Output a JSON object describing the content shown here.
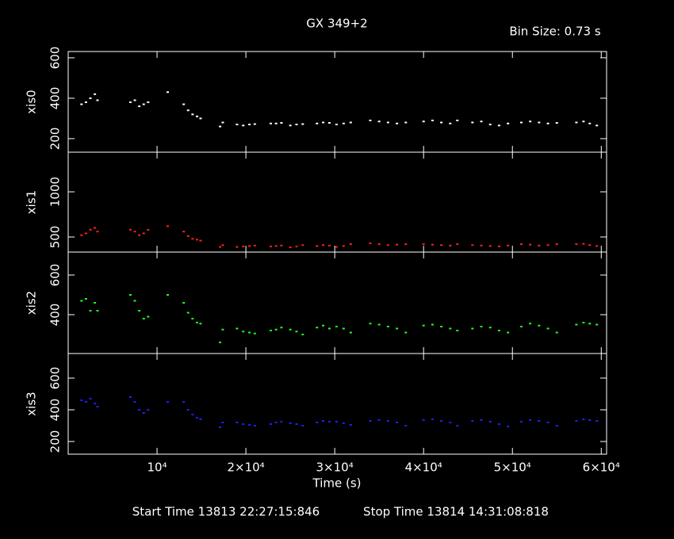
{
  "chart_data": [
    {
      "type": "scatter",
      "title": "GX 349+2",
      "subtitle": "Bin Size: 0.73 s",
      "ylabel": "xis0",
      "color": "#ffffff",
      "x": [
        1500,
        2000,
        2500,
        3000,
        3300,
        7000,
        7500,
        8000,
        8500,
        9000,
        11200,
        13000,
        13500,
        14000,
        14500,
        14900,
        17100,
        17400,
        19000,
        19700,
        20400,
        21000,
        22800,
        23400,
        24000,
        25000,
        25700,
        26400,
        28000,
        28700,
        29400,
        30200,
        31000,
        31800,
        34000,
        35000,
        36000,
        37000,
        38000,
        40000,
        41000,
        42000,
        43000,
        43800,
        45500,
        46500,
        47500,
        48500,
        49500,
        51000,
        52000,
        53000,
        54000,
        55000,
        57200,
        58000,
        58700,
        59500
      ],
      "values": [
        370,
        380,
        400,
        420,
        390,
        380,
        390,
        360,
        370,
        380,
        430,
        370,
        340,
        320,
        310,
        300,
        260,
        280,
        270,
        265,
        270,
        272,
        275,
        275,
        278,
        265,
        270,
        272,
        275,
        280,
        278,
        270,
        275,
        280,
        290,
        285,
        280,
        275,
        280,
        285,
        290,
        280,
        275,
        290,
        280,
        285,
        270,
        265,
        275,
        280,
        285,
        280,
        275,
        278,
        280,
        285,
        275,
        265
      ],
      "xlim": [
        0,
        60600
      ],
      "ylim": [
        133,
        631
      ],
      "yticks": [
        200,
        400,
        600
      ]
    },
    {
      "type": "scatter",
      "ylabel": "xis1",
      "color": "#ff2020",
      "x": [
        1500,
        2000,
        2500,
        3000,
        3300,
        7000,
        7500,
        8000,
        8500,
        9000,
        11200,
        13000,
        13500,
        14000,
        14500,
        14900,
        17100,
        17400,
        19000,
        19700,
        20400,
        21000,
        22800,
        23400,
        24000,
        25000,
        25700,
        26400,
        28000,
        28700,
        29400,
        30200,
        31000,
        31800,
        34000,
        35000,
        36000,
        37000,
        38000,
        40000,
        41000,
        42000,
        43000,
        43800,
        45500,
        46500,
        47500,
        48500,
        49500,
        51000,
        52000,
        53000,
        54000,
        55000,
        57200,
        58000,
        58700,
        59500
      ],
      "values": [
        520,
        540,
        580,
        600,
        560,
        580,
        560,
        520,
        540,
        580,
        620,
        560,
        510,
        480,
        470,
        460,
        390,
        410,
        390,
        395,
        400,
        405,
        395,
        400,
        405,
        385,
        395,
        410,
        400,
        410,
        405,
        390,
        400,
        420,
        430,
        420,
        410,
        415,
        420,
        420,
        415,
        410,
        405,
        420,
        410,
        405,
        400,
        395,
        405,
        420,
        415,
        405,
        410,
        420,
        420,
        425,
        410,
        400
      ],
      "xlim": [
        0,
        60600
      ],
      "ylim": [
        333,
        1439
      ],
      "yticks": [
        500,
        1000
      ]
    },
    {
      "type": "scatter",
      "ylabel": "xis2",
      "color": "#20ff20",
      "x": [
        1500,
        2000,
        2500,
        3000,
        3300,
        7000,
        7500,
        8000,
        8500,
        9000,
        11200,
        13000,
        13500,
        14000,
        14500,
        14900,
        17100,
        17400,
        19000,
        19700,
        20400,
        21000,
        22800,
        23400,
        24000,
        25000,
        25700,
        26400,
        28000,
        28700,
        29400,
        30200,
        31000,
        31800,
        34000,
        35000,
        36000,
        37000,
        38000,
        40000,
        41000,
        42000,
        43000,
        43800,
        45500,
        46500,
        47500,
        48500,
        49500,
        51000,
        52000,
        53000,
        54000,
        55000,
        57200,
        58000,
        58700,
        59500
      ],
      "values": [
        470,
        480,
        420,
        460,
        420,
        500,
        470,
        420,
        380,
        390,
        500,
        460,
        410,
        380,
        360,
        355,
        260,
        325,
        330,
        315,
        310,
        305,
        320,
        325,
        335,
        325,
        315,
        300,
        335,
        345,
        330,
        340,
        330,
        310,
        355,
        350,
        340,
        330,
        310,
        345,
        350,
        340,
        330,
        320,
        330,
        340,
        335,
        320,
        310,
        340,
        355,
        345,
        330,
        310,
        350,
        360,
        355,
        350
      ],
      "xlim": [
        0,
        60600
      ],
      "ylim": [
        204,
        716
      ],
      "yticks": [
        400,
        600
      ]
    },
    {
      "type": "scatter",
      "ylabel": "xis3",
      "color": "#2020ff",
      "x": [
        1500,
        2000,
        2500,
        3000,
        3300,
        7000,
        7500,
        8000,
        8500,
        9000,
        11200,
        13000,
        13500,
        14000,
        14500,
        14900,
        17100,
        17400,
        19000,
        19700,
        20400,
        21000,
        22800,
        23400,
        24000,
        25000,
        25700,
        26400,
        28000,
        28700,
        29400,
        30200,
        31000,
        31800,
        34000,
        35000,
        36000,
        37000,
        38000,
        40000,
        41000,
        42000,
        43000,
        43800,
        45500,
        46500,
        47500,
        48500,
        49500,
        51000,
        52000,
        53000,
        54000,
        55000,
        57200,
        58000,
        58700,
        59500
      ],
      "values": [
        460,
        450,
        470,
        440,
        420,
        480,
        450,
        400,
        380,
        400,
        450,
        450,
        400,
        370,
        350,
        340,
        290,
        320,
        320,
        310,
        305,
        300,
        310,
        320,
        325,
        315,
        310,
        300,
        320,
        330,
        325,
        325,
        315,
        305,
        330,
        335,
        330,
        320,
        300,
        335,
        340,
        330,
        320,
        300,
        330,
        335,
        325,
        310,
        295,
        325,
        335,
        330,
        320,
        300,
        330,
        340,
        335,
        330
      ],
      "xlim": [
        0,
        60600
      ],
      "ylim": [
        120,
        755
      ],
      "yticks": [
        200,
        400,
        600
      ],
      "xlabel": "Time (s)",
      "xticks": [
        {
          "value": 10000,
          "label": "10⁴"
        },
        {
          "value": 20000,
          "label": "2×10⁴"
        },
        {
          "value": 30000,
          "label": "3×10⁴"
        },
        {
          "value": 40000,
          "label": "4×10⁴"
        },
        {
          "value": 50000,
          "label": "5×10⁴"
        },
        {
          "value": 60000,
          "label": "6×10⁴"
        }
      ],
      "annotations": [
        "Start Time 13813 22:27:15:846",
        "Stop Time 13814 14:31:08:818"
      ]
    }
  ]
}
